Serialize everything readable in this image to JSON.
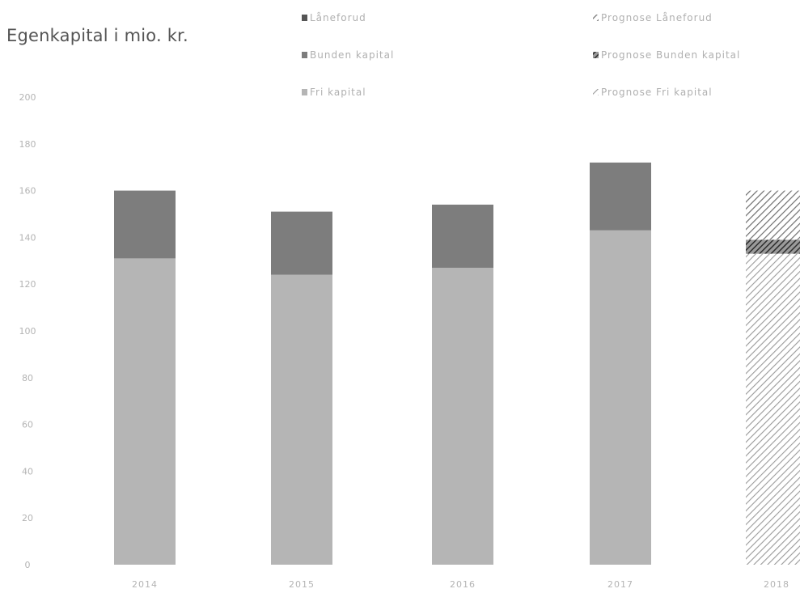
{
  "chart_data": {
    "type": "bar",
    "stacked": true,
    "title": "Egenkapital i mio. kr.",
    "categories": [
      "2014",
      "2015",
      "2016",
      "2017",
      "2018"
    ],
    "y_ticks": [
      "0",
      "20",
      "40",
      "60",
      "80",
      "100",
      "120",
      "140",
      "160",
      "180",
      "200"
    ],
    "ylim": [
      0,
      200
    ],
    "series": [
      {
        "name": "Fri kapital",
        "values": [
          131,
          124,
          127,
          143,
          0
        ],
        "color": "#b5b5b5"
      },
      {
        "name": "Bunden kapital",
        "values": [
          29,
          27,
          27,
          29,
          0
        ],
        "color": "#7d7d7d"
      },
      {
        "name": "Låneforud",
        "values": [
          0,
          0,
          0,
          0,
          0
        ],
        "color": "#555555"
      },
      {
        "name": "Prognose Fri kapital",
        "values": [
          0,
          0,
          0,
          0,
          133
        ],
        "color": "#b5b5b5",
        "pattern": "hatch"
      },
      {
        "name": "Prognose Bunden kapital",
        "values": [
          0,
          0,
          0,
          0,
          6
        ],
        "color": "#555555",
        "pattern": "hatch"
      },
      {
        "name": "Prognose Låneforud",
        "values": [
          0,
          0,
          0,
          0,
          21
        ],
        "color": "#7d7d7d",
        "pattern": "hatch"
      }
    ],
    "legend": {
      "position": "top",
      "left_column": [
        "Låneforud",
        "Bunden kapital",
        "Fri kapital"
      ],
      "right_column": [
        "Prognose Låneforud",
        "Prognose Bunden kapital",
        "Prognose Fri kapital"
      ]
    },
    "grid": false
  }
}
